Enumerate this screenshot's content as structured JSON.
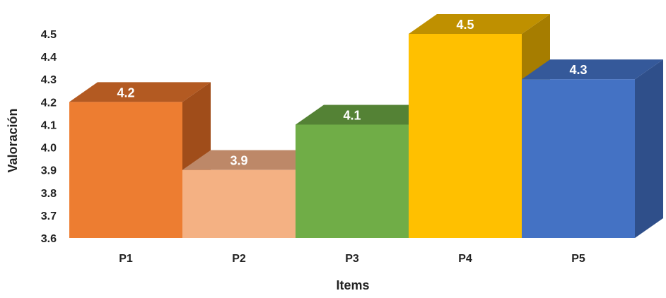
{
  "chart_data": {
    "type": "bar",
    "style": "3d-columns",
    "title": "",
    "xlabel": "Items",
    "ylabel": "Valoración",
    "categories": [
      "P1",
      "P2",
      "P3",
      "P4",
      "P5"
    ],
    "values": [
      4.2,
      3.9,
      4.1,
      4.5,
      4.3
    ],
    "data_labels": [
      "4.2",
      "3.9",
      "4.1",
      "4.5",
      "4.3"
    ],
    "ylim": [
      3.6,
      4.5
    ],
    "yticks": [
      "3.6",
      "3.7",
      "3.8",
      "3.9",
      "4.0",
      "4.1",
      "4.2",
      "4.3",
      "4.4",
      "4.5"
    ],
    "grid": false,
    "legend": "none",
    "colors": [
      {
        "front": "#ED7D31",
        "side": "#A04D1A",
        "top": "#B35A22"
      },
      {
        "front": "#F4B183",
        "side": "#C78A62",
        "top": "#BD8868"
      },
      {
        "front": "#70AD47",
        "side": "#4A7A2C",
        "top": "#548235"
      },
      {
        "front": "#FFC000",
        "side": "#A67D00",
        "top": "#BF9000"
      },
      {
        "front": "#4472C4",
        "side": "#2F4F8A",
        "top": "#35599A"
      }
    ]
  }
}
